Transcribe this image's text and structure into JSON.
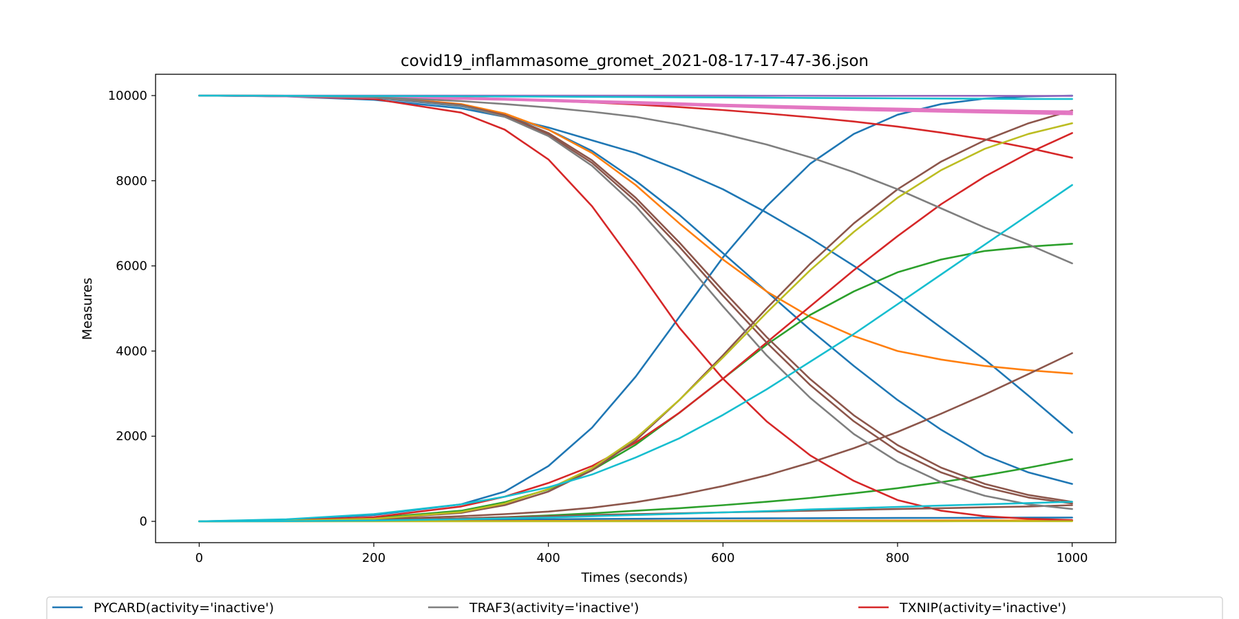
{
  "chart_data": {
    "type": "line",
    "title": "covid19_inflammasome_gromet_2021-08-17-17-47-36.json",
    "xlabel": "Times (seconds)",
    "ylabel": "Measures",
    "xlim": [
      -50,
      1050
    ],
    "ylim": [
      -500,
      10500
    ],
    "xticks": [
      0,
      200,
      400,
      600,
      800,
      1000
    ],
    "yticks": [
      0,
      2000,
      4000,
      6000,
      8000,
      10000
    ],
    "grid": false,
    "legend": {
      "placement": "bottom",
      "entries": [
        {
          "name": "PYCARD(activity='inactive')",
          "color": "#1f77b4"
        },
        {
          "name": "TRAF3(activity='inactive')",
          "color": "#7f7f7f"
        },
        {
          "name": "TXNIP(activity='inactive')",
          "color": "#d62728"
        }
      ]
    },
    "x": [
      0,
      100,
      200,
      300,
      350,
      400,
      450,
      500,
      550,
      600,
      650,
      700,
      750,
      800,
      850,
      900,
      950,
      1000
    ],
    "series": [
      {
        "color": "#1f77b4",
        "values": [
          10000,
          9980,
          9900,
          9700,
          9500,
          9250,
          8950,
          8650,
          8250,
          7800,
          7250,
          6650,
          6000,
          5300,
          4550,
          3800,
          2950,
          2080
        ]
      },
      {
        "color": "#1f77b4",
        "values": [
          10000,
          9990,
          9950,
          9750,
          9550,
          9200,
          8700,
          8000,
          7200,
          6300,
          5400,
          4500,
          3650,
          2850,
          2150,
          1550,
          1150,
          880
        ]
      },
      {
        "color": "#1f77b4",
        "values": [
          0,
          40,
          150,
          400,
          700,
          1300,
          2200,
          3400,
          4800,
          6200,
          7400,
          8400,
          9100,
          9550,
          9800,
          9930,
          9980,
          10000
        ]
      },
      {
        "color": "#1f77b4",
        "values": [
          0,
          10,
          20,
          30,
          40,
          50,
          55,
          60,
          65,
          70,
          72,
          75,
          78,
          80,
          82,
          85,
          88,
          90
        ]
      },
      {
        "color": "#ff7f0e",
        "values": [
          10000,
          9995,
          9975,
          9800,
          9580,
          9200,
          8650,
          7900,
          7000,
          6150,
          5400,
          4800,
          4350,
          4000,
          3800,
          3650,
          3550,
          3470
        ]
      },
      {
        "color": "#ff7f0e",
        "values": [
          0,
          2,
          5,
          8,
          10,
          12,
          14,
          15,
          16,
          17,
          18,
          19,
          20,
          20,
          21,
          21,
          22,
          22
        ]
      },
      {
        "color": "#2ca02c",
        "values": [
          0,
          20,
          80,
          250,
          450,
          750,
          1200,
          1800,
          2550,
          3350,
          4150,
          4850,
          5400,
          5850,
          6150,
          6350,
          6450,
          6520
        ]
      },
      {
        "color": "#2ca02c",
        "values": [
          0,
          10,
          30,
          70,
          100,
          140,
          190,
          250,
          310,
          380,
          460,
          550,
          660,
          780,
          920,
          1080,
          1260,
          1460
        ]
      },
      {
        "color": "#d62728",
        "values": [
          10000,
          9985,
          9920,
          9600,
          9200,
          8500,
          7400,
          6000,
          4550,
          3350,
          2350,
          1550,
          950,
          500,
          250,
          120,
          60,
          30
        ]
      },
      {
        "color": "#d62728",
        "values": [
          10000,
          9995,
          9980,
          9950,
          9920,
          9880,
          9840,
          9790,
          9730,
          9660,
          9580,
          9490,
          9390,
          9270,
          9130,
          8970,
          8770,
          8540
        ]
      },
      {
        "color": "#d62728",
        "values": [
          0,
          20,
          100,
          350,
          580,
          900,
          1300,
          1850,
          2550,
          3350,
          4200,
          5050,
          5900,
          6700,
          7450,
          8100,
          8650,
          9120
        ]
      },
      {
        "color": "#9467bd",
        "values": [
          10000,
          10000,
          10000,
          9999,
          9999,
          9999,
          9998,
          9998,
          9997,
          9997,
          9996,
          9996,
          9995,
          9995,
          9994,
          9994,
          9993,
          9993
        ]
      },
      {
        "color": "#8c564b",
        "values": [
          10000,
          9990,
          9960,
          9770,
          9520,
          9080,
          8420,
          7520,
          6450,
          5300,
          4200,
          3200,
          2350,
          1650,
          1150,
          800,
          560,
          420
        ]
      },
      {
        "color": "#8c564b",
        "values": [
          10000,
          9990,
          9960,
          9780,
          9540,
          9120,
          8480,
          7600,
          6550,
          5420,
          4330,
          3340,
          2490,
          1790,
          1260,
          880,
          620,
          460
        ]
      },
      {
        "color": "#8c564b",
        "values": [
          0,
          15,
          60,
          200,
          380,
          700,
          1200,
          1900,
          2850,
          3900,
          5000,
          6050,
          7000,
          7800,
          8450,
          8950,
          9350,
          9650
        ]
      },
      {
        "color": "#8c564b",
        "values": [
          0,
          15,
          50,
          120,
          170,
          230,
          320,
          450,
          620,
          830,
          1080,
          1380,
          1720,
          2100,
          2530,
          2980,
          3460,
          3950
        ]
      },
      {
        "color": "#8c564b",
        "values": [
          0,
          10,
          30,
          70,
          100,
          120,
          150,
          170,
          190,
          210,
          230,
          250,
          270,
          290,
          310,
          330,
          350,
          380
        ]
      },
      {
        "color": "#e377c2",
        "values": [
          10000,
          9980,
          9950,
          9920,
          9900,
          9870,
          9840,
          9810,
          9780,
          9750,
          9720,
          9690,
          9660,
          9640,
          9620,
          9600,
          9580,
          9560
        ]
      },
      {
        "color": "#e377c2",
        "values": [
          10000,
          9985,
          9960,
          9935,
          9915,
          9890,
          9860,
          9830,
          9800,
          9770,
          9740,
          9710,
          9685,
          9665,
          9645,
          9625,
          9610,
          9600
        ]
      },
      {
        "color": "#e377c2",
        "values": [
          10000,
          9990,
          9970,
          9945,
          9925,
          9900,
          9875,
          9850,
          9820,
          9790,
          9765,
          9740,
          9715,
          9695,
          9675,
          9655,
          9640,
          9630
        ]
      },
      {
        "color": "#7f7f7f",
        "values": [
          10000,
          9995,
          9960,
          9870,
          9800,
          9720,
          9620,
          9500,
          9320,
          9100,
          8850,
          8550,
          8200,
          7800,
          7350,
          6900,
          6500,
          6060
        ]
      },
      {
        "color": "#7f7f7f",
        "values": [
          10000,
          9990,
          9960,
          9760,
          9500,
          9050,
          8350,
          7400,
          6250,
          5050,
          3900,
          2900,
          2050,
          1400,
          920,
          600,
          400,
          290
        ]
      },
      {
        "color": "#bcbd22",
        "values": [
          0,
          15,
          60,
          220,
          420,
          760,
          1250,
          1950,
          2850,
          3850,
          4900,
          5900,
          6800,
          7600,
          8250,
          8750,
          9100,
          9350
        ]
      },
      {
        "color": "#bcbd22",
        "values": [
          0,
          0,
          1,
          1,
          1,
          2,
          2,
          2,
          2,
          3,
          3,
          3,
          3,
          3,
          3,
          4,
          4,
          4
        ]
      },
      {
        "color": "#17becf",
        "values": [
          0,
          50,
          170,
          400,
          580,
          800,
          1100,
          1500,
          1950,
          2500,
          3100,
          3750,
          4400,
          5100,
          5800,
          6500,
          7200,
          7900
        ]
      },
      {
        "color": "#17becf",
        "values": [
          10000,
          9995,
          9990,
          9985,
          9980,
          9975,
          9970,
          9965,
          9960,
          9955,
          9950,
          9945,
          9940,
          9935,
          9930,
          9925,
          9920,
          9920
        ]
      },
      {
        "color": "#17becf",
        "values": [
          0,
          5,
          20,
          50,
          70,
          90,
          120,
          150,
          180,
          210,
          240,
          280,
          310,
          340,
          370,
          400,
          430,
          460
        ]
      }
    ]
  }
}
